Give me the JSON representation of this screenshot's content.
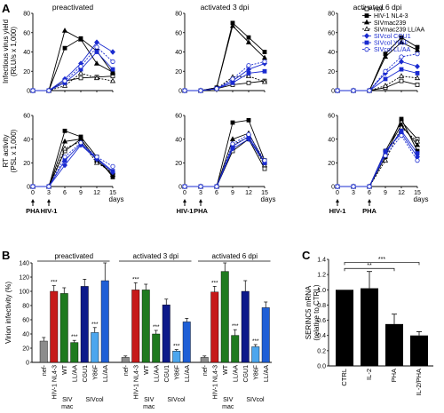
{
  "panel_labels": [
    "A",
    "B",
    "C"
  ],
  "panel_a": {
    "titles": [
      "preactivated",
      "activated 3 dpi",
      "activated 6 dpi"
    ],
    "ylabel_top": [
      "Infectious virus yield",
      "(RLU/s x 1,000)"
    ],
    "ylabel_bottom": [
      "RT activity",
      "(PSL x 1,000)"
    ],
    "xlabel": "days",
    "markers": [
      [
        "PHA",
        "HIV-1"
      ],
      [
        "HIV-1",
        "PHA"
      ],
      [
        "HIV-1",
        "PHA"
      ]
    ],
    "legend": [
      "nef-",
      "HIV-1 NL4-3",
      "SIVmac239",
      "SIVmac239 LL/AA",
      "SIVcol CGU1",
      "SIVcol Y86F",
      "SIVcol LL/AA"
    ]
  },
  "panel_b": {
    "ylabel": "Virion infectivity (%)",
    "groups": [
      "preactivated",
      "activated 3 dpi",
      "activated 6 dpi"
    ],
    "bar_labels": [
      "nef-",
      "HIV-1 NL4-3",
      "WT",
      "LL/AA",
      "CGU1",
      "Y86F",
      "LL/AA"
    ],
    "sub_labels": [
      "SIV\nmac",
      "SIVcol"
    ],
    "sig": "***"
  },
  "panel_c": {
    "ylabel": [
      "SERINC5 mRNA",
      "(relative to CTRL)"
    ],
    "sig": [
      "**",
      "***"
    ]
  },
  "colors": {
    "black": "#000000",
    "gray": "#8c8c8c",
    "blue": "#1a2bd0",
    "lightblue": "#5aa0ea",
    "red": "#c61a1a",
    "darkblue": "#0d1a8a",
    "green": "#1f7a1f",
    "skyblue": "#4ca6ee",
    "midblue": "#1f5fd6"
  },
  "chart_data": [
    {
      "type": "line",
      "title": "preactivated",
      "xlabel": "days",
      "ylabel": "Infectious virus yield (RLU/s x 1,000)",
      "x": [
        0,
        3,
        6,
        9,
        12,
        15
      ],
      "xlim": [
        0,
        15
      ],
      "ylim": [
        0,
        80
      ],
      "yticks": [
        0,
        20,
        40,
        60,
        80
      ],
      "legend_position": "right",
      "series": [
        {
          "name": "nef-",
          "values": [
            0,
            0,
            10,
            13,
            14,
            15
          ]
        },
        {
          "name": "HIV-1 NL4-3",
          "values": [
            0,
            0,
            44,
            54,
            41,
            18
          ]
        },
        {
          "name": "SIVmac239",
          "values": [
            0,
            0,
            62,
            53,
            28,
            19
          ]
        },
        {
          "name": "SIVmac239 LL/AA",
          "values": [
            0,
            0,
            5,
            18,
            13,
            10
          ]
        },
        {
          "name": "SIVcol CGU1",
          "values": [
            0,
            0,
            12,
            28,
            50,
            40
          ]
        },
        {
          "name": "SIVcol Y86F",
          "values": [
            0,
            0,
            8,
            22,
            40,
            22
          ]
        },
        {
          "name": "SIVcol LL/AA",
          "values": [
            0,
            0,
            10,
            25,
            45,
            30
          ]
        }
      ]
    },
    {
      "type": "line",
      "title": "activated 3 dpi",
      "xlabel": "days",
      "ylabel": "Infectious virus yield (RLU/s x 1,000)",
      "x": [
        0,
        3,
        6,
        9,
        12,
        15
      ],
      "xlim": [
        0,
        15
      ],
      "ylim": [
        0,
        80
      ],
      "yticks": [
        0,
        20,
        40,
        60,
        80
      ],
      "series": [
        {
          "name": "nef-",
          "values": [
            0,
            0,
            2,
            6,
            8,
            10
          ]
        },
        {
          "name": "HIV-1 NL4-3",
          "values": [
            0,
            0,
            3,
            70,
            55,
            40
          ]
        },
        {
          "name": "SIVmac239",
          "values": [
            0,
            0,
            3,
            67,
            50,
            34
          ]
        },
        {
          "name": "SIVmac239 LL/AA",
          "values": [
            0,
            0,
            2,
            14,
            15,
            9
          ]
        },
        {
          "name": "SIVcol CGU1",
          "values": [
            0,
            0,
            2,
            10,
            22,
            28
          ]
        },
        {
          "name": "SIVcol Y86F",
          "values": [
            0,
            0,
            2,
            8,
            18,
            20
          ]
        },
        {
          "name": "SIVcol LL/AA",
          "values": [
            0,
            0,
            2,
            12,
            26,
            30
          ]
        }
      ]
    },
    {
      "type": "line",
      "title": "activated 6 dpi",
      "xlabel": "days",
      "ylabel": "Infectious virus yield (RLU/s x 1,000)",
      "x": [
        0,
        3,
        6,
        9,
        12,
        15
      ],
      "xlim": [
        0,
        15
      ],
      "ylim": [
        0,
        80
      ],
      "yticks": [
        0,
        20,
        40,
        60,
        80
      ],
      "series": [
        {
          "name": "nef-",
          "values": [
            0,
            0,
            0,
            3,
            10,
            6
          ]
        },
        {
          "name": "HIV-1 NL4-3",
          "values": [
            0,
            0,
            0,
            38,
            55,
            45
          ]
        },
        {
          "name": "SIVmac239",
          "values": [
            0,
            0,
            0,
            35,
            50,
            42
          ]
        },
        {
          "name": "SIVmac239 LL/AA",
          "values": [
            0,
            0,
            0,
            5,
            15,
            13
          ]
        },
        {
          "name": "SIVcol CGU1",
          "values": [
            0,
            0,
            0,
            18,
            30,
            25
          ]
        },
        {
          "name": "SIVcol Y86F",
          "values": [
            0,
            0,
            0,
            12,
            22,
            18
          ]
        },
        {
          "name": "SIVcol LL/AA",
          "values": [
            0,
            0,
            0,
            20,
            35,
            38
          ]
        }
      ]
    },
    {
      "type": "line",
      "title": "preactivated",
      "xlabel": "days",
      "ylabel": "RT activity (PSL x 1,000)",
      "x": [
        0,
        3,
        6,
        9,
        12,
        15
      ],
      "xlim": [
        0,
        15
      ],
      "ylim": [
        0,
        60
      ],
      "yticks": [
        0,
        20,
        40,
        60
      ],
      "series": [
        {
          "name": "nef-",
          "values": [
            0,
            0,
            30,
            40,
            22,
            10
          ]
        },
        {
          "name": "HIV-1 NL4-3",
          "values": [
            0,
            0,
            47,
            42,
            25,
            8
          ]
        },
        {
          "name": "SIVmac239",
          "values": [
            0,
            0,
            38,
            40,
            22,
            10
          ]
        },
        {
          "name": "SIVmac239 LL/AA",
          "values": [
            0,
            0,
            32,
            38,
            20,
            12
          ]
        },
        {
          "name": "SIVcol CGU1",
          "values": [
            0,
            0,
            18,
            35,
            23,
            12
          ]
        },
        {
          "name": "SIVcol Y86F",
          "values": [
            0,
            0,
            22,
            36,
            24,
            13
          ]
        },
        {
          "name": "SIVcol LL/AA",
          "values": [
            0,
            0,
            25,
            37,
            25,
            17
          ]
        }
      ]
    },
    {
      "type": "line",
      "title": "activated 3 dpi",
      "xlabel": "days",
      "ylabel": "RT activity (PSL x 1,000)",
      "x": [
        0,
        3,
        6,
        9,
        12,
        15
      ],
      "xlim": [
        0,
        15
      ],
      "ylim": [
        0,
        60
      ],
      "yticks": [
        0,
        20,
        40,
        60
      ],
      "series": [
        {
          "name": "nef-",
          "values": [
            0,
            0,
            0,
            30,
            40,
            15
          ]
        },
        {
          "name": "HIV-1 NL4-3",
          "values": [
            0,
            0,
            0,
            54,
            56,
            22
          ]
        },
        {
          "name": "SIVmac239",
          "values": [
            0,
            0,
            0,
            40,
            45,
            20
          ]
        },
        {
          "name": "SIVmac239 LL/AA",
          "values": [
            0,
            0,
            0,
            35,
            42,
            18
          ]
        },
        {
          "name": "SIVcol CGU1",
          "values": [
            0,
            0,
            0,
            32,
            40,
            20
          ]
        },
        {
          "name": "SIVcol Y86F",
          "values": [
            0,
            0,
            0,
            34,
            42,
            20
          ]
        },
        {
          "name": "SIVcol LL/AA",
          "values": [
            0,
            0,
            0,
            36,
            44,
            22
          ]
        }
      ]
    },
    {
      "type": "line",
      "title": "activated 6 dpi",
      "xlabel": "days",
      "ylabel": "RT activity (PSL x 1,000)",
      "x": [
        0,
        3,
        6,
        9,
        12,
        15
      ],
      "xlim": [
        0,
        15
      ],
      "ylim": [
        0,
        60
      ],
      "yticks": [
        0,
        20,
        40,
        60
      ],
      "series": [
        {
          "name": "nef-",
          "values": [
            0,
            0,
            0,
            30,
            55,
            40
          ]
        },
        {
          "name": "HIV-1 NL4-3",
          "values": [
            0,
            0,
            0,
            25,
            57,
            30
          ]
        },
        {
          "name": "SIVmac239",
          "values": [
            0,
            0,
            0,
            28,
            52,
            35
          ]
        },
        {
          "name": "SIVmac239 LL/AA",
          "values": [
            0,
            0,
            0,
            22,
            50,
            38
          ]
        },
        {
          "name": "SIVcol CGU1",
          "values": [
            0,
            0,
            0,
            30,
            45,
            25
          ]
        },
        {
          "name": "SIVcol Y86F",
          "values": [
            0,
            0,
            0,
            28,
            47,
            28
          ]
        },
        {
          "name": "SIVcol LL/AA",
          "values": [
            0,
            0,
            0,
            26,
            43,
            22
          ]
        }
      ]
    },
    {
      "type": "bar",
      "title": "",
      "ylabel": "Virion infectivity (%)",
      "ylim": [
        0,
        140
      ],
      "yticks": [
        0,
        20,
        40,
        60,
        80,
        100,
        120,
        140
      ],
      "groups": [
        "preactivated",
        "activated 3 dpi",
        "activated 6 dpi"
      ],
      "categories": [
        "nef-",
        "HIV-1 NL4-3",
        "WT",
        "LL/AA",
        "CGU1",
        "Y86F",
        "LL/AA"
      ],
      "series": [
        {
          "name": "preactivated",
          "values": [
            30,
            100,
            97,
            28,
            107,
            42,
            115
          ],
          "errors": [
            5,
            8,
            8,
            3,
            10,
            7,
            25
          ]
        },
        {
          "name": "activated 3 dpi",
          "values": [
            7,
            102,
            102,
            40,
            81,
            16,
            57
          ],
          "errors": [
            2,
            10,
            8,
            5,
            8,
            2,
            5
          ]
        },
        {
          "name": "activated 6 dpi",
          "values": [
            7,
            99,
            128,
            38,
            100,
            22,
            77
          ],
          "errors": [
            2,
            8,
            12,
            8,
            15,
            3,
            8
          ]
        }
      ]
    },
    {
      "type": "bar",
      "title": "",
      "ylabel": "SERINC5 mRNA (relative to CTRL)",
      "ylim": [
        0,
        1.4
      ],
      "yticks": [
        0,
        0.2,
        0.4,
        0.6,
        0.8,
        1.0,
        1.2,
        1.4
      ],
      "categories": [
        "CTRL",
        "IL-2",
        "PHA",
        "IL-2/PHA"
      ],
      "values": [
        1.0,
        1.02,
        0.55,
        0.4
      ],
      "errors": [
        0,
        0.22,
        0.13,
        0.05
      ]
    }
  ]
}
